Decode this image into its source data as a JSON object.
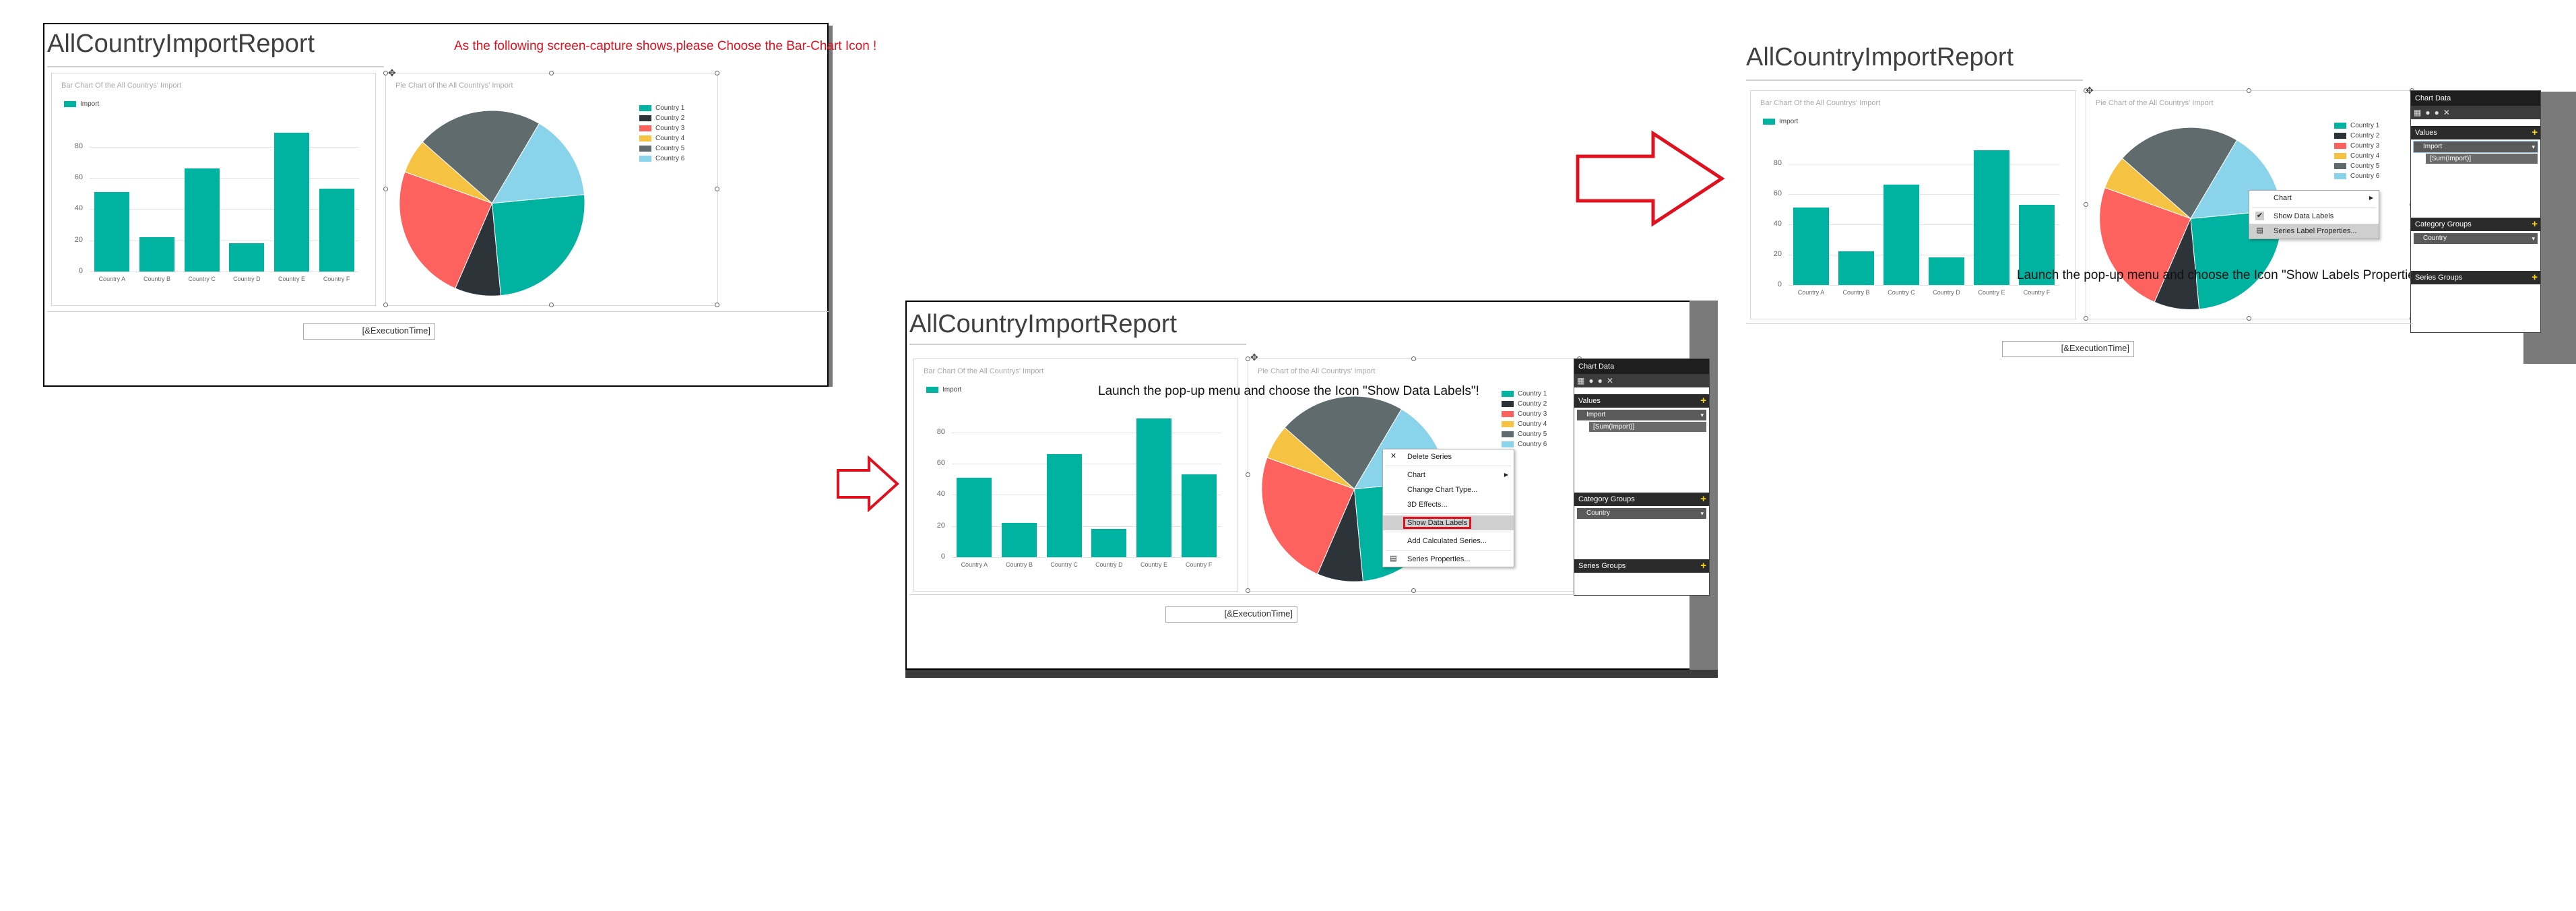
{
  "report_title": "AllCountryImportReport",
  "bar_chart": {
    "title": "Bar Chart Of the All Countrys' Import",
    "legend": "Import",
    "color": "#00b2a0"
  },
  "pie_chart": {
    "title": "Pie Chart of the All Countrys' Import",
    "legend": [
      "Country 1",
      "Country 2",
      "Country 3",
      "Country 4",
      "Country 5",
      "Country 6"
    ],
    "colors": [
      "#00b2a0",
      "#2d3439",
      "#fd625e",
      "#f5c242",
      "#5f6b6d",
      "#8ad4eb"
    ]
  },
  "chart_data": [
    {
      "type": "bar",
      "title": "Bar Chart Of the All Countrys' Import",
      "categories": [
        "Country A",
        "Country B",
        "Country C",
        "Country D",
        "Country E",
        "Country F"
      ],
      "series": [
        {
          "name": "Import",
          "values": [
            51,
            22,
            66,
            18,
            89,
            53
          ]
        }
      ],
      "yticks": [
        "0",
        "20",
        "40",
        "60",
        "80"
      ],
      "ylim": [
        0,
        95
      ],
      "grid": true,
      "legend_position": "top-left"
    },
    {
      "type": "pie",
      "title": "Pie Chart of the All Countrys' Import",
      "categories": [
        "Country 1",
        "Country 2",
        "Country 3",
        "Country 4",
        "Country 5",
        "Country 6"
      ],
      "values": [
        25,
        8,
        24,
        6,
        22,
        15
      ],
      "legend_position": "right"
    }
  ],
  "execution_time": "[&ExecutionTime]",
  "annotations": {
    "step1": "As the following screen-capture shows,please Choose the Bar-Chart Icon !",
    "step2": "Launch the pop-up menu and choose the Icon \"Show Data Labels\"!",
    "step3": "Launch the pop-up menu and choose the Icon \"Show Labels Properties\"!"
  },
  "chart_data_panel": {
    "header": "Chart Data",
    "values_label": "Values",
    "values_item": "Import",
    "values_sub": "[Sum(Import)]",
    "category_label": "Category Groups",
    "category_item": "Country",
    "series_label": "Series Groups"
  },
  "context_menu_1": [
    "Delete Series",
    "Chart",
    "Change Chart Type...",
    "3D Effects...",
    "Show Data Labels",
    "Add Calculated Series...",
    "Series Properties..."
  ],
  "context_menu_2": [
    "Chart",
    "Show Data Labels",
    "Series Label Properties..."
  ],
  "colors": {
    "arrow": "#e0101e",
    "annotation_red": "#e0101e",
    "annotation_black": "#111111",
    "accent": "#00b2a0"
  }
}
